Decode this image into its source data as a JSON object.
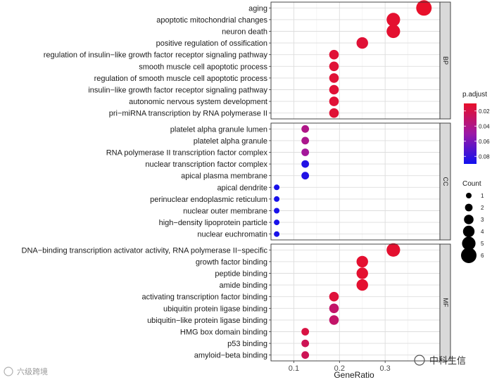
{
  "chart_data": {
    "type": "scatter",
    "xlabel": "GeneRatio",
    "xlim": [
      0.05,
      0.42
    ],
    "xticks": [
      0.1,
      0.2,
      0.3
    ],
    "xtick_labels": [
      "0.1",
      "0.2",
      "0.3"
    ],
    "grid": true,
    "color_legend": {
      "title": "p.adjust",
      "min": 0.01,
      "max": 0.09,
      "ticks": [
        0.02,
        0.04,
        0.06,
        0.08
      ],
      "tick_labels": [
        "0.02",
        "0.04",
        "0.06",
        "0.08"
      ],
      "low_color": "#e8102a",
      "high_color": "#1111ee"
    },
    "size_legend": {
      "title": "Count",
      "values": [
        1,
        2,
        3,
        4,
        5,
        6
      ],
      "labels": [
        "1",
        "2",
        "3",
        "4",
        "5",
        "6"
      ]
    },
    "panels": [
      {
        "strip": "BP",
        "terms": [
          {
            "label": "aging",
            "x": 0.385,
            "count": 6,
            "p": 0.01
          },
          {
            "label": "apoptotic mitochondrial changes",
            "x": 0.318,
            "count": 5,
            "p": 0.012
          },
          {
            "label": "neuron death",
            "x": 0.318,
            "count": 5,
            "p": 0.012
          },
          {
            "label": "positive regulation of ossification",
            "x": 0.25,
            "count": 4,
            "p": 0.014
          },
          {
            "label": "regulation of insulin−like growth factor receptor signaling pathway",
            "x": 0.188,
            "count": 3,
            "p": 0.014
          },
          {
            "label": "smooth muscle cell apoptotic process",
            "x": 0.188,
            "count": 3,
            "p": 0.014
          },
          {
            "label": "regulation of smooth muscle cell apoptotic process",
            "x": 0.188,
            "count": 3,
            "p": 0.014
          },
          {
            "label": "insulin−like growth factor receptor signaling pathway",
            "x": 0.188,
            "count": 3,
            "p": 0.014
          },
          {
            "label": "autonomic nervous system development",
            "x": 0.188,
            "count": 3,
            "p": 0.014
          },
          {
            "label": "pri−miRNA transcription by RNA polymerase II",
            "x": 0.188,
            "count": 3,
            "p": 0.014
          }
        ]
      },
      {
        "strip": "CC",
        "terms": [
          {
            "label": "platelet alpha granule lumen",
            "x": 0.125,
            "count": 2,
            "p": 0.04
          },
          {
            "label": "platelet alpha granule",
            "x": 0.125,
            "count": 2,
            "p": 0.042
          },
          {
            "label": "RNA polymerase II transcription factor complex",
            "x": 0.125,
            "count": 2,
            "p": 0.046
          },
          {
            "label": "nuclear transcription factor complex",
            "x": 0.125,
            "count": 2,
            "p": 0.085
          },
          {
            "label": "apical plasma membrane",
            "x": 0.125,
            "count": 2,
            "p": 0.085
          },
          {
            "label": "apical dendrite",
            "x": 0.0625,
            "count": 1,
            "p": 0.088
          },
          {
            "label": "perinuclear endoplasmic reticulum",
            "x": 0.0625,
            "count": 1,
            "p": 0.088
          },
          {
            "label": "nuclear outer membrane",
            "x": 0.0625,
            "count": 1,
            "p": 0.088
          },
          {
            "label": "high−density lipoprotein particle",
            "x": 0.0625,
            "count": 1,
            "p": 0.088
          },
          {
            "label": "nuclear euchromatin",
            "x": 0.0625,
            "count": 1,
            "p": 0.088
          }
        ]
      },
      {
        "strip": "MF",
        "terms": [
          {
            "label": "DNA−binding transcription activator activity, RNA polymerase II−specific",
            "x": 0.318,
            "count": 5,
            "p": 0.012
          },
          {
            "label": "growth factor binding",
            "x": 0.25,
            "count": 4,
            "p": 0.012
          },
          {
            "label": "peptide binding",
            "x": 0.25,
            "count": 4,
            "p": 0.012
          },
          {
            "label": "amide binding",
            "x": 0.25,
            "count": 4,
            "p": 0.012
          },
          {
            "label": "activating transcription factor binding",
            "x": 0.188,
            "count": 3,
            "p": 0.015
          },
          {
            "label": "ubiquitin protein ligase binding",
            "x": 0.188,
            "count": 3,
            "p": 0.03
          },
          {
            "label": "ubiquitin−like protein ligase binding",
            "x": 0.188,
            "count": 3,
            "p": 0.03
          },
          {
            "label": "HMG box domain binding",
            "x": 0.125,
            "count": 2,
            "p": 0.018
          },
          {
            "label": "p53 binding",
            "x": 0.125,
            "count": 2,
            "p": 0.024
          },
          {
            "label": "amyloid−beta binding",
            "x": 0.125,
            "count": 2,
            "p": 0.024
          }
        ]
      }
    ]
  },
  "watermarks": {
    "left": "六级跨境",
    "right": "中科生信"
  }
}
